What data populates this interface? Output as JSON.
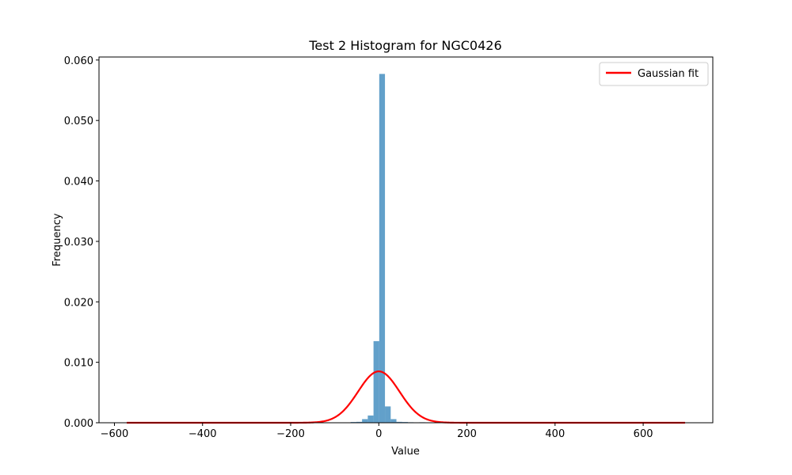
{
  "chart_data": {
    "type": "bar",
    "title": "Test 2 Histogram for NGC0426",
    "xlabel": "Value",
    "ylabel": "Frequency",
    "xlim": [
      -635,
      758
    ],
    "ylim": [
      0,
      0.0605
    ],
    "xticks": [
      -600,
      -400,
      -200,
      0,
      200,
      400,
      600
    ],
    "xtick_labels": [
      "−600",
      "−400",
      "−200",
      "0",
      "200",
      "400",
      "600"
    ],
    "yticks": [
      0,
      0.01,
      0.02,
      0.03,
      0.04,
      0.05,
      0.06
    ],
    "ytick_labels": [
      "0.000",
      "0.010",
      "0.020",
      "0.030",
      "0.040",
      "0.050",
      "0.060"
    ],
    "grid": false,
    "legend_position": "upper right",
    "histogram": {
      "color": "#1f77b4",
      "opacity": 0.7,
      "bins": [
        {
          "x0": -64,
          "x1": -51,
          "value": 0.00012
        },
        {
          "x0": -51,
          "x1": -38,
          "value": 0.00015
        },
        {
          "x0": -38,
          "x1": -25,
          "value": 0.0006
        },
        {
          "x0": -25,
          "x1": -12,
          "value": 0.0012
        },
        {
          "x0": -12,
          "x1": 1,
          "value": 0.0135
        },
        {
          "x0": 1,
          "x1": 14,
          "value": 0.0577
        },
        {
          "x0": 14,
          "x1": 27,
          "value": 0.0027
        },
        {
          "x0": 27,
          "x1": 40,
          "value": 0.0006
        },
        {
          "x0": 40,
          "x1": 53,
          "value": 0.00015
        },
        {
          "x0": 53,
          "x1": 66,
          "value": 0.00012
        },
        {
          "x0": 66,
          "x1": 79,
          "value": 8e-05
        },
        {
          "x0": 92,
          "x1": 105,
          "value": 8e-05
        },
        {
          "x0": 105,
          "x1": 118,
          "value": 6e-05
        }
      ]
    },
    "series": [
      {
        "name": "Gaussian fit",
        "type": "line",
        "color": "#ff0000",
        "mean": 0,
        "sigma": 47,
        "amplitude": 0.0085,
        "x_range": [
          -572,
          695
        ]
      }
    ]
  }
}
